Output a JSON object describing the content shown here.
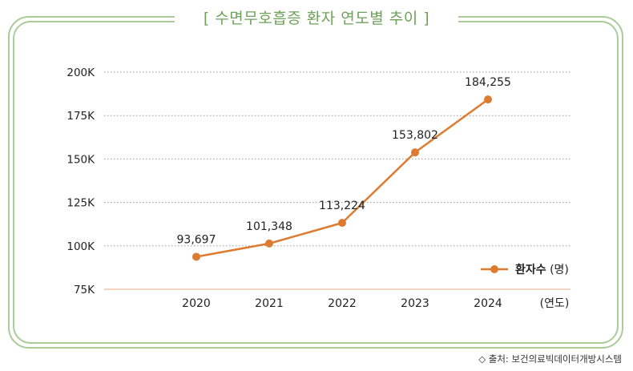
{
  "title": "[ 수면무호흡증 환자 연도별 추이 ]",
  "source": "◇ 출처: 보건의료빅데이터개방시스템",
  "colors": {
    "line": "#dd7b31",
    "frame": "#a9cc98",
    "title": "#6ea25a",
    "baseline": "#edc9ad",
    "grid": "#9a9a9a"
  },
  "chart_data": {
    "type": "line",
    "categories": [
      "2020",
      "2021",
      "2022",
      "2023",
      "2024"
    ],
    "series": [
      {
        "name": "환자수 (명)",
        "values": [
          93697,
          101348,
          113224,
          153802,
          184255
        ]
      }
    ],
    "data_labels": [
      "93,697",
      "101,348",
      "113,224",
      "153,802",
      "184,255"
    ],
    "y_ticks": [
      75000,
      100000,
      125000,
      150000,
      175000,
      200000
    ],
    "y_tick_labels": [
      "75K",
      "100K",
      "125K",
      "150K",
      "175K",
      "200K"
    ],
    "ylim": [
      75000,
      200000
    ],
    "xlabel": "(연도)",
    "ylabel": "",
    "grid": "horizontal dotted",
    "legend": {
      "position": "bottom-right",
      "label": "환자수",
      "unit": "(명)"
    }
  }
}
